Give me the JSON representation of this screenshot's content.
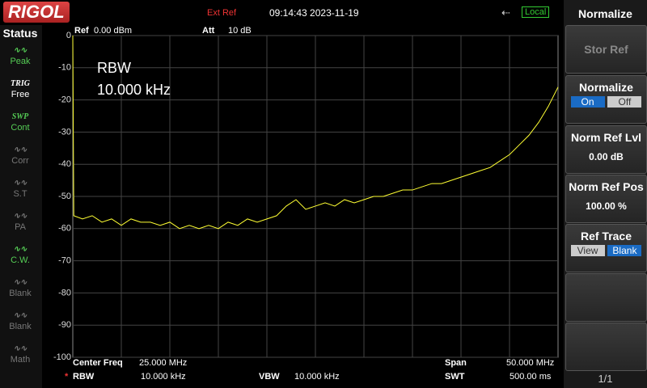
{
  "header": {
    "logo": "RIGOL",
    "ext_ref": "Ext Ref",
    "datetime": "09:14:43 2023-11-19",
    "mode": "Local"
  },
  "status": {
    "title": "Status",
    "items": [
      {
        "top": "",
        "label": "Peak"
      },
      {
        "top": "TRIG",
        "label": "Free"
      },
      {
        "top": "SWP",
        "label": "Cont"
      },
      {
        "top": "",
        "label": "Corr"
      },
      {
        "top": "",
        "label": "S.T"
      },
      {
        "top": "",
        "label": "PA"
      },
      {
        "top": "",
        "label": "C.W."
      },
      {
        "top": "",
        "label": "Blank"
      },
      {
        "top": "",
        "label": "Blank"
      },
      {
        "top": "",
        "label": "Math"
      }
    ]
  },
  "plot_header": {
    "ref_label": "Ref",
    "ref_value": "0.00 dBm",
    "att_label": "Att",
    "att_value": "10 dB"
  },
  "annotation": {
    "line1": "RBW",
    "line2": "10.000 kHz"
  },
  "chart_data": {
    "type": "line",
    "xlim": [
      0,
      50
    ],
    "ylim": [
      -100,
      0
    ],
    "yticks": [
      0,
      -10,
      -20,
      -30,
      -40,
      -50,
      -60,
      -70,
      -80,
      -90,
      -100
    ],
    "grid": true,
    "series": [
      {
        "color": "#ffff33",
        "x": [
          0,
          0.1,
          1,
          2,
          3,
          4,
          5,
          6,
          7,
          8,
          9,
          10,
          11,
          12,
          13,
          14,
          15,
          16,
          17,
          18,
          19,
          20,
          21,
          22,
          23,
          24,
          25,
          26,
          27,
          28,
          29,
          30,
          31,
          32,
          33,
          34,
          35,
          36,
          37,
          38,
          39,
          40,
          41,
          42,
          43,
          44,
          45,
          46,
          47,
          48,
          49,
          50
        ],
        "values": [
          0,
          -56,
          -57,
          -56,
          -58,
          -57,
          -59,
          -57,
          -58,
          -58,
          -59,
          -58,
          -60,
          -59,
          -60,
          -59,
          -60,
          -58,
          -59,
          -57,
          -58,
          -57,
          -56,
          -53,
          -51,
          -54,
          -53,
          -52,
          -53,
          -51,
          -52,
          -51,
          -50,
          -50,
          -49,
          -48,
          -48,
          -47,
          -46,
          -46,
          -45,
          -44,
          -43,
          -42,
          -41,
          -39,
          -37,
          -34,
          -31,
          -27,
          -22,
          -16
        ]
      }
    ]
  },
  "footer": {
    "center_label": "Center Freq",
    "center_value": "25.000 MHz",
    "span_label": "Span",
    "span_value": "50.000 MHz",
    "star": "*",
    "rbw_label": "RBW",
    "rbw_value": "10.000 kHz",
    "vbw_label": "VBW",
    "vbw_value": "10.000 kHz",
    "swt_label": "SWT",
    "swt_value": "500.00 ms"
  },
  "menu": {
    "title": "Normalize",
    "stor_ref": "Stor Ref",
    "normalize": {
      "label": "Normalize",
      "on": "On",
      "off": "Off"
    },
    "norm_ref_lvl": {
      "label": "Norm Ref Lvl",
      "value": "0.00 dB"
    },
    "norm_ref_pos": {
      "label": "Norm Ref Pos",
      "value": "100.00 %"
    },
    "ref_trace": {
      "label": "Ref Trace",
      "view": "View",
      "blank": "Blank"
    },
    "page": "1/1"
  }
}
